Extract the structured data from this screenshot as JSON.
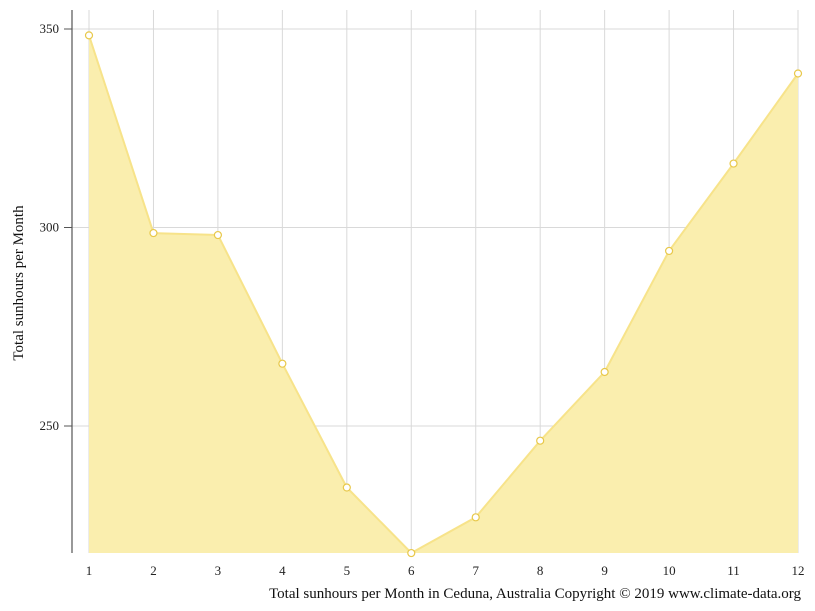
{
  "chart_data": {
    "type": "area",
    "title": "",
    "xlabel": "",
    "ylabel": "Total sunhours per Month",
    "caption": "Total sunhours per Month in Ceduna, Australia Copyright © 2019 www.climate-data.org",
    "x": [
      1,
      2,
      3,
      4,
      5,
      6,
      7,
      8,
      9,
      10,
      11,
      12
    ],
    "x_tick_labels": [
      "1",
      "2",
      "3",
      "4",
      "5",
      "6",
      "7",
      "8",
      "9",
      "10",
      "11",
      "12"
    ],
    "y_ticks": [
      250,
      300,
      350
    ],
    "y_tick_labels": [
      "250",
      "300",
      "350"
    ],
    "ylim": [
      218,
      354
    ],
    "grid": true,
    "legend": "none",
    "series": [
      {
        "values": [
          348.4,
          298.6,
          298.1,
          265.7,
          234.5,
          218.0,
          227.0,
          246.3,
          263.6,
          294.1,
          316.1,
          338.8
        ],
        "line_color": "#f7e38a",
        "fill_color": "#faeeae",
        "marker_fill": "#ffffff",
        "marker_stroke": "#e8c84a"
      }
    ],
    "grid_color": "#d9d9d9",
    "axis_color": "#555555"
  }
}
